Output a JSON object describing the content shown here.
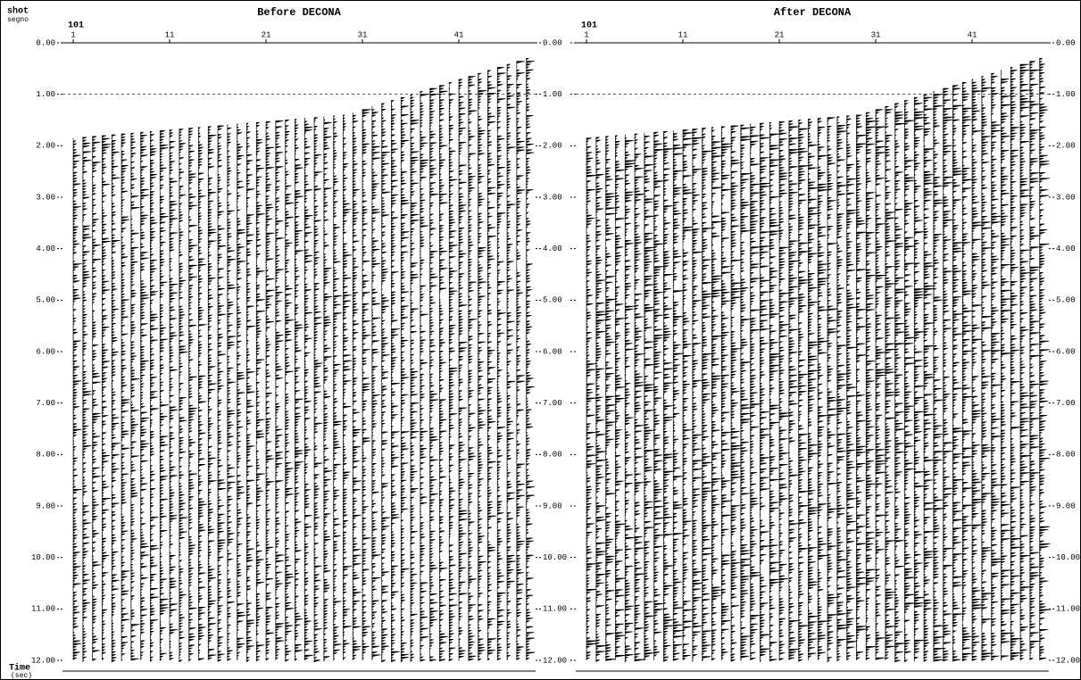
{
  "axis": {
    "shot": "shot",
    "segno": "segno",
    "time": "Time",
    "unit": "(sec)"
  },
  "panels": [
    {
      "title": "Before DECONA",
      "first_trace": "101",
      "xticks": [
        1,
        11,
        21,
        31,
        41
      ],
      "yticks": [
        {
          "value": 0,
          "label": "0.00"
        },
        {
          "value": 1,
          "label": "1.00"
        },
        {
          "value": 2,
          "label": "2.00"
        },
        {
          "value": 3,
          "label": "3.00"
        },
        {
          "value": 4,
          "label": "4.00"
        },
        {
          "value": 5,
          "label": "5.00"
        },
        {
          "value": 6,
          "label": "6.00"
        },
        {
          "value": 7,
          "label": "7.00"
        },
        {
          "value": 8,
          "label": "8.00"
        },
        {
          "value": 9,
          "label": "9.00"
        },
        {
          "value": 10,
          "label": "10.00"
        },
        {
          "value": 11,
          "label": "11.00"
        },
        {
          "value": 12,
          "label": "12.00"
        }
      ]
    },
    {
      "title": "After DECONA",
      "first_trace": "101",
      "xticks": [
        1,
        11,
        21,
        31,
        41
      ],
      "yticks": [
        {
          "value": 0,
          "label": "0.00"
        },
        {
          "value": 1,
          "label": "1.00"
        },
        {
          "value": 2,
          "label": "2.00"
        },
        {
          "value": 3,
          "label": "3.00"
        },
        {
          "value": 4,
          "label": "4.00"
        },
        {
          "value": 5,
          "label": "5.00"
        },
        {
          "value": 6,
          "label": "6.00"
        },
        {
          "value": 7,
          "label": "7.00"
        },
        {
          "value": 8,
          "label": "8.00"
        },
        {
          "value": 9,
          "label": "9.00"
        },
        {
          "value": 10,
          "label": "10.00"
        },
        {
          "value": 11,
          "label": "11.00"
        },
        {
          "value": 12,
          "label": "12.00"
        }
      ]
    }
  ]
}
